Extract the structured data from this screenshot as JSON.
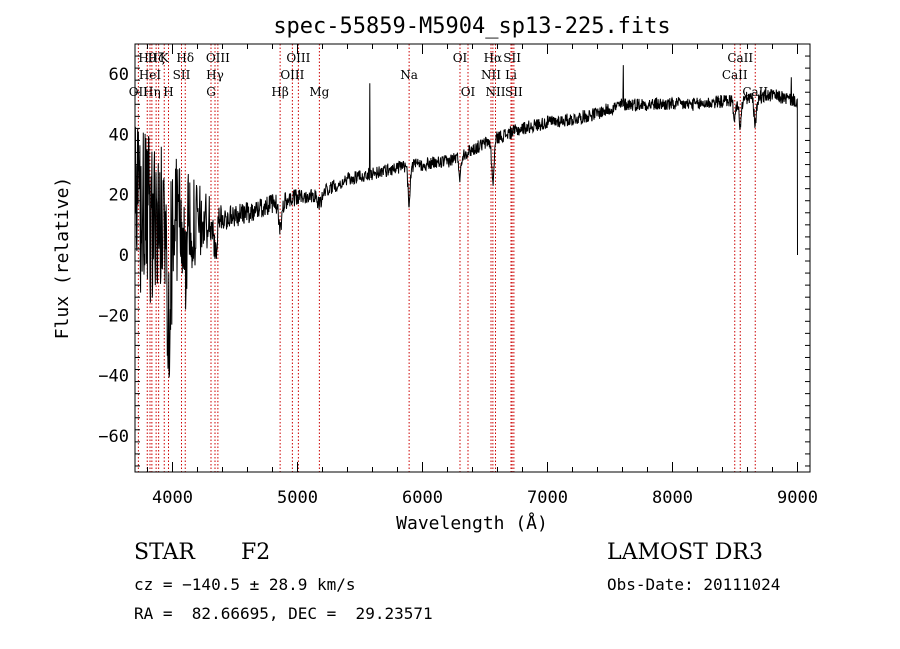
{
  "chart_data": {
    "type": "line",
    "title": "spec-55859-M5904_sp13-225.fits",
    "xlabel": "Wavelength (Å)",
    "ylabel": "Flux (relative)",
    "xlim": [
      3700,
      9100
    ],
    "ylim": [
      -72,
      70
    ],
    "xticks": [
      4000,
      5000,
      6000,
      7000,
      8000,
      9000
    ],
    "yticks": [
      -60,
      -40,
      -20,
      0,
      20,
      40,
      60
    ],
    "xtick_labels": [
      "4000",
      "5000",
      "6000",
      "7000",
      "8000",
      "9000"
    ],
    "ytick_labels": [
      "−60",
      "−40",
      "−20",
      "0",
      "20",
      "40",
      "60"
    ],
    "series": [
      {
        "name": "flux",
        "anchors_x": [
          3700,
          3800,
          3900,
          4000,
          4200,
          4400,
          4600,
          4800,
          5000,
          5200,
          5400,
          5600,
          5800,
          6000,
          6200,
          6400,
          6600,
          6800,
          7000,
          7200,
          7400,
          7600,
          7800,
          8000,
          8200,
          8400,
          8600,
          8800,
          9000
        ],
        "anchors_y": [
          15,
          12,
          10,
          12,
          10,
          12,
          14,
          17,
          19,
          21,
          25,
          27,
          29,
          30,
          31,
          35,
          39,
          42,
          44,
          45,
          47,
          50,
          50,
          50,
          50,
          51,
          52,
          53,
          51
        ],
        "features": [
          {
            "x": 3970,
            "depth": 26,
            "width": 22
          },
          {
            "x": 4101,
            "depth": 14,
            "width": 16
          },
          {
            "x": 4340,
            "depth": 12,
            "width": 16
          },
          {
            "x": 4861,
            "depth": 9,
            "width": 18
          },
          {
            "x": 5175,
            "depth": 4,
            "width": 25
          },
          {
            "x": 5893,
            "depth": 13,
            "width": 12
          },
          {
            "x": 6300,
            "depth": 7,
            "width": 12
          },
          {
            "x": 6563,
            "depth": 14,
            "width": 14
          },
          {
            "x": 8498,
            "depth": 6,
            "width": 14
          },
          {
            "x": 8542,
            "depth": 9,
            "width": 14
          },
          {
            "x": 8662,
            "depth": 9,
            "width": 14
          }
        ],
        "spikes": [
          {
            "x": 5577,
            "value": 57
          },
          {
            "x": 7605,
            "value": 63
          },
          {
            "x": 8950,
            "value": 59
          }
        ],
        "blue_noise_amplitude": 28,
        "red_noise_amplitude": 2.2,
        "end_drop": [
          9000,
          0
        ]
      }
    ],
    "lines": [
      {
        "x": 3727,
        "label": "OII",
        "row": 3
      },
      {
        "x": 3798,
        "label": "Hθ",
        "row": 1
      },
      {
        "x": 3820,
        "label": "HeI",
        "row": 2
      },
      {
        "x": 3835,
        "label": "Hη",
        "row": 3
      },
      {
        "x": 3869,
        "label": "Hζ",
        "row": 1
      },
      {
        "x": 3889,
        "label": "",
        "row": 0
      },
      {
        "x": 3934,
        "label": "K",
        "row": 1
      },
      {
        "x": 3968,
        "label": "H",
        "row": 3
      },
      {
        "x": 4072,
        "label": "SII",
        "row": 2
      },
      {
        "x": 4102,
        "label": "Hδ",
        "row": 1
      },
      {
        "x": 4308,
        "label": "G",
        "row": 3
      },
      {
        "x": 4340,
        "label": "Hγ",
        "row": 2
      },
      {
        "x": 4363,
        "label": "OIII",
        "row": 1
      },
      {
        "x": 4861,
        "label": "Hβ",
        "row": 3
      },
      {
        "x": 4959,
        "label": "OIII",
        "row": 2
      },
      {
        "x": 5007,
        "label": "OIII",
        "row": 1
      },
      {
        "x": 5175,
        "label": "Mg",
        "row": 3
      },
      {
        "x": 5893,
        "label": "Na",
        "row": 2
      },
      {
        "x": 6300,
        "label": "OI",
        "row": 1
      },
      {
        "x": 6364,
        "label": "OI",
        "row": 3
      },
      {
        "x": 6548,
        "label": "NII",
        "row": 2
      },
      {
        "x": 6563,
        "label": "Hα",
        "row": 1
      },
      {
        "x": 6584,
        "label": "NII",
        "row": 3
      },
      {
        "x": 6708,
        "label": "Li",
        "row": 2
      },
      {
        "x": 6717,
        "label": "SII",
        "row": 1
      },
      {
        "x": 6731,
        "label": "SII",
        "row": 3
      },
      {
        "x": 8498,
        "label": "CaII",
        "row": 2
      },
      {
        "x": 8542,
        "label": "CaII",
        "row": 1
      },
      {
        "x": 8662,
        "label": "CaII",
        "row": 3
      }
    ]
  },
  "info": {
    "object_class": "STAR",
    "subclass": "F2",
    "survey": "LAMOST DR3",
    "cz": "cz = −140.5 ± 28.9 km/s",
    "obs_date": "Obs-Date: 20111024",
    "coords": "RA =  82.66695, DEC =  29.23571"
  },
  "colors": {
    "axis": "#000000",
    "spectrum": "#000000",
    "line_marker": "#cc0000"
  }
}
